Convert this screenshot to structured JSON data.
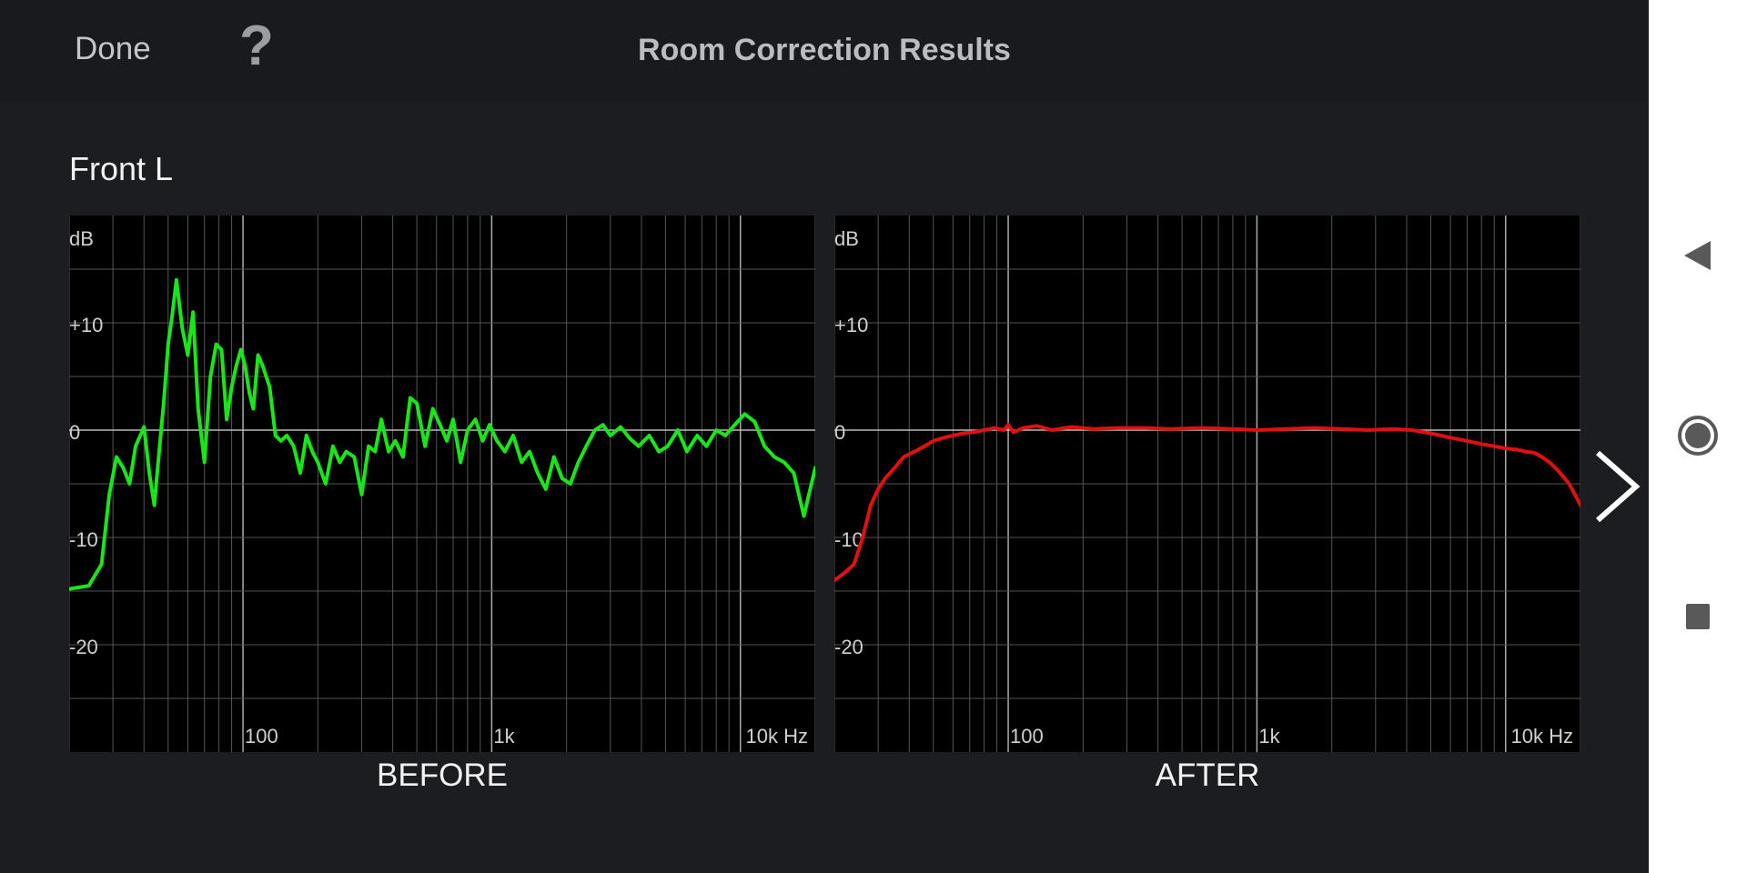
{
  "header": {
    "done_label": "Done",
    "help_label": "?",
    "title": "Room Correction Results"
  },
  "channel_name": "Front L",
  "colors": {
    "before_line": "#19e619",
    "after_line": "#e01010",
    "grid": "#555555",
    "major_grid": "#aaaaaa",
    "zero_line": "#bbbbbb"
  },
  "icons": {
    "next": "chevron-right-icon",
    "nav_back": "triangle-left-icon",
    "nav_home": "circle-icon",
    "nav_recent": "square-icon"
  },
  "chart_data": [
    {
      "type": "line",
      "caption": "BEFORE",
      "xscale": "log",
      "xlim": [
        20,
        20000
      ],
      "ylim": [
        -30,
        20
      ],
      "ylabel": "dB",
      "xticks": [
        {
          "value": 100,
          "label": "100"
        },
        {
          "value": 1000,
          "label": "1k"
        },
        {
          "value": 10000,
          "label": "10k Hz"
        }
      ],
      "yticks": [
        {
          "value": 10,
          "label": "+10"
        },
        {
          "value": 0,
          "label": "0"
        },
        {
          "value": -10,
          "label": "-10"
        },
        {
          "value": -20,
          "label": "-20"
        }
      ],
      "grid": true,
      "series": [
        {
          "color": "#19e619",
          "x": [
            20,
            24,
            27,
            29,
            31,
            33,
            35,
            37,
            40,
            42,
            44,
            46,
            48,
            50,
            52,
            54,
            57,
            60,
            63,
            66,
            70,
            74,
            78,
            82,
            86,
            90,
            94,
            98,
            102,
            106,
            110,
            115,
            120,
            128,
            135,
            142,
            150,
            160,
            170,
            180,
            190,
            200,
            215,
            230,
            245,
            260,
            280,
            300,
            320,
            340,
            360,
            385,
            410,
            440,
            470,
            500,
            540,
            580,
            620,
            660,
            700,
            750,
            800,
            860,
            920,
            980,
            1050,
            1130,
            1220,
            1320,
            1420,
            1530,
            1650,
            1780,
            1920,
            2070,
            2230,
            2400,
            2600,
            2800,
            3000,
            3300,
            3600,
            3900,
            4300,
            4700,
            5100,
            5600,
            6100,
            6700,
            7300,
            8000,
            8700,
            9500,
            10400,
            11400,
            12500,
            13700,
            15000,
            16400,
            18000,
            20000
          ],
          "y": [
            -14.8,
            -14.5,
            -12.5,
            -6,
            -2.5,
            -3.5,
            -5,
            -1.5,
            0.3,
            -4,
            -7,
            -2,
            2.5,
            8,
            10.8,
            14,
            9.5,
            7,
            11,
            2,
            -3,
            5,
            8,
            7.5,
            1,
            4,
            6,
            7.5,
            6,
            3.5,
            2,
            7,
            6,
            4,
            -0.5,
            -1,
            -0.5,
            -1.5,
            -4,
            -0.5,
            -2,
            -3,
            -5,
            -1.5,
            -3,
            -2,
            -2.5,
            -6,
            -1.5,
            -2,
            1,
            -2,
            -1,
            -2.5,
            3,
            2.5,
            -1.5,
            2,
            0.5,
            -1,
            1,
            -3,
            0,
            1,
            -1,
            0.5,
            -1,
            -2,
            -0.5,
            -3,
            -2,
            -4,
            -5.5,
            -2.5,
            -4.5,
            -5,
            -3,
            -1.5,
            0,
            0.5,
            -0.5,
            0.3,
            -0.8,
            -1.5,
            -0.5,
            -2,
            -1.5,
            0,
            -2,
            -0.5,
            -1.5,
            0,
            -0.5,
            0.5,
            1.5,
            0.8,
            -1.5,
            -2.5,
            -3,
            -4,
            -8,
            -3.5
          ]
        }
      ]
    },
    {
      "type": "line",
      "caption": "AFTER",
      "xscale": "log",
      "xlim": [
        20,
        20000
      ],
      "ylim": [
        -30,
        20
      ],
      "ylabel": "dB",
      "xticks": [
        {
          "value": 100,
          "label": "100"
        },
        {
          "value": 1000,
          "label": "1k"
        },
        {
          "value": 10000,
          "label": "10k Hz"
        }
      ],
      "yticks": [
        {
          "value": 10,
          "label": "+10"
        },
        {
          "value": 0,
          "label": "0"
        },
        {
          "value": -10,
          "label": "-10"
        },
        {
          "value": -20,
          "label": "-20"
        }
      ],
      "grid": true,
      "series": [
        {
          "color": "#e01010",
          "x": [
            20,
            22,
            24,
            26,
            28,
            30,
            32,
            35,
            38,
            42,
            46,
            50,
            55,
            60,
            66,
            72,
            80,
            88,
            96,
            100,
            105,
            115,
            130,
            150,
            180,
            220,
            280,
            350,
            450,
            600,
            800,
            1000,
            1300,
            1700,
            2200,
            2800,
            3500,
            4200,
            5000,
            6000,
            7000,
            8000,
            9000,
            10000,
            11000,
            12000,
            13000,
            14000,
            15000,
            16000,
            17000,
            18000,
            19000,
            20000
          ],
          "y": [
            -14,
            -13.3,
            -12.5,
            -10,
            -7,
            -5.5,
            -4.5,
            -3.5,
            -2.5,
            -2,
            -1.5,
            -1,
            -0.7,
            -0.5,
            -0.3,
            -0.2,
            0,
            0.2,
            0,
            0.5,
            -0.2,
            0.2,
            0.4,
            0,
            0.3,
            0.1,
            0.2,
            0.2,
            0.1,
            0.2,
            0.1,
            0,
            0.1,
            0.2,
            0.1,
            0,
            0.1,
            0,
            -0.3,
            -0.7,
            -1,
            -1.3,
            -1.5,
            -1.7,
            -1.8,
            -2,
            -2.1,
            -2.5,
            -3,
            -3.6,
            -4.3,
            -5,
            -6,
            -7
          ]
        }
      ]
    }
  ]
}
